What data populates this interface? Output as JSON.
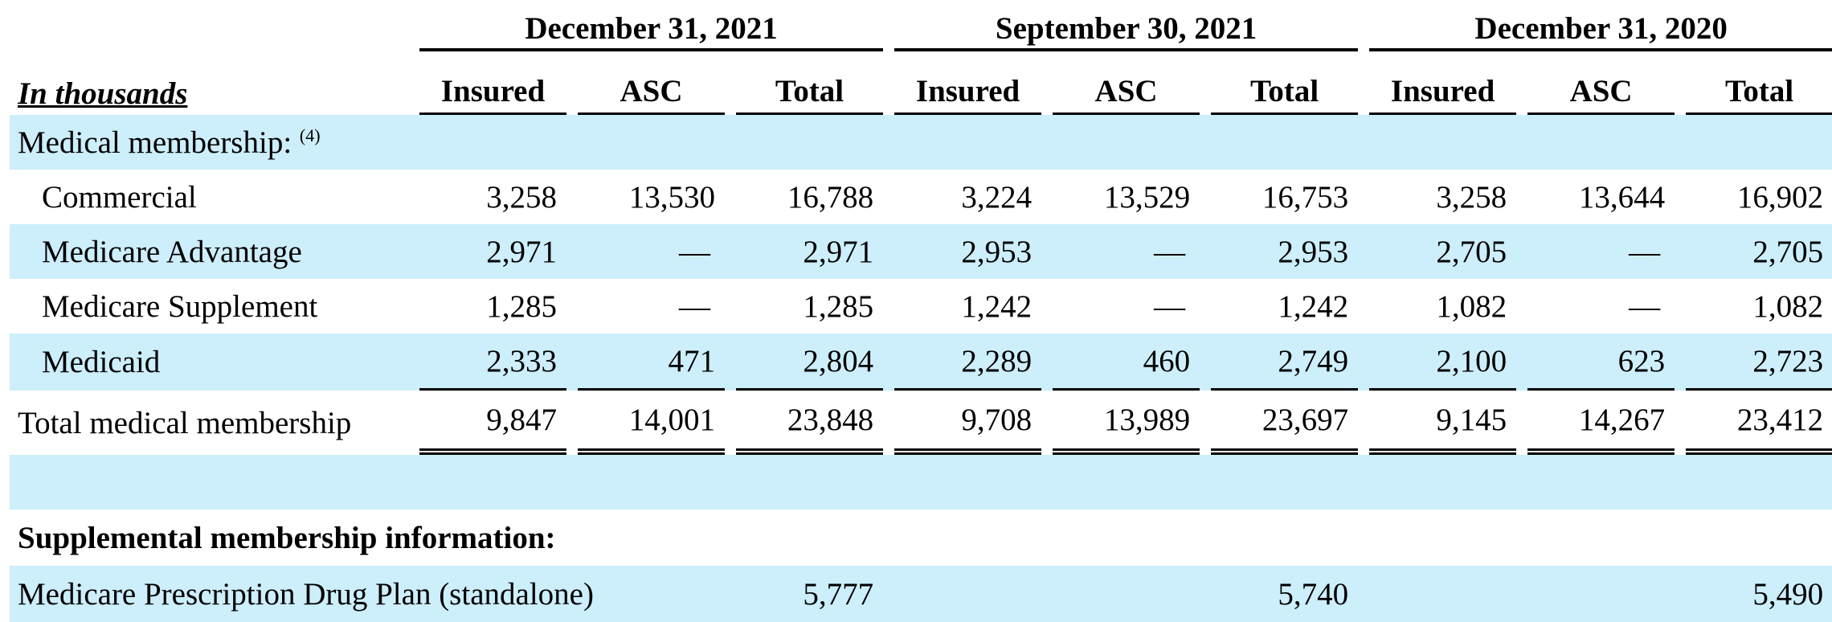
{
  "periods": [
    "December 31, 2021",
    "September 30, 2021",
    "December 31, 2020"
  ],
  "unit_label": "In thousands",
  "column_headers": [
    "Insured",
    "ASC",
    "Total"
  ],
  "medical_membership_label": "Medical membership:",
  "footnote_marker": "(4)",
  "rows": [
    {
      "label": "Commercial",
      "values": [
        "3,258",
        "13,530",
        "16,788",
        "3,224",
        "13,529",
        "16,753",
        "3,258",
        "13,644",
        "16,902"
      ]
    },
    {
      "label": "Medicare Advantage",
      "values": [
        "2,971",
        "—",
        "2,971",
        "2,953",
        "—",
        "2,953",
        "2,705",
        "—",
        "2,705"
      ]
    },
    {
      "label": "Medicare Supplement",
      "values": [
        "1,285",
        "—",
        "1,285",
        "1,242",
        "—",
        "1,242",
        "1,082",
        "—",
        "1,082"
      ]
    },
    {
      "label": "Medicaid",
      "values": [
        "2,333",
        "471",
        "2,804",
        "2,289",
        "460",
        "2,749",
        "2,100",
        "623",
        "2,723"
      ]
    }
  ],
  "total_row": {
    "label": "Total medical membership",
    "values": [
      "9,847",
      "14,001",
      "23,848",
      "9,708",
      "13,989",
      "23,697",
      "9,145",
      "14,267",
      "23,412"
    ]
  },
  "supplemental_label": "Supplemental membership information:",
  "pdp_row": {
    "label": "Medicare Prescription Drug Plan (standalone)",
    "values": [
      "5,777",
      "5,740",
      "5,490"
    ]
  }
}
